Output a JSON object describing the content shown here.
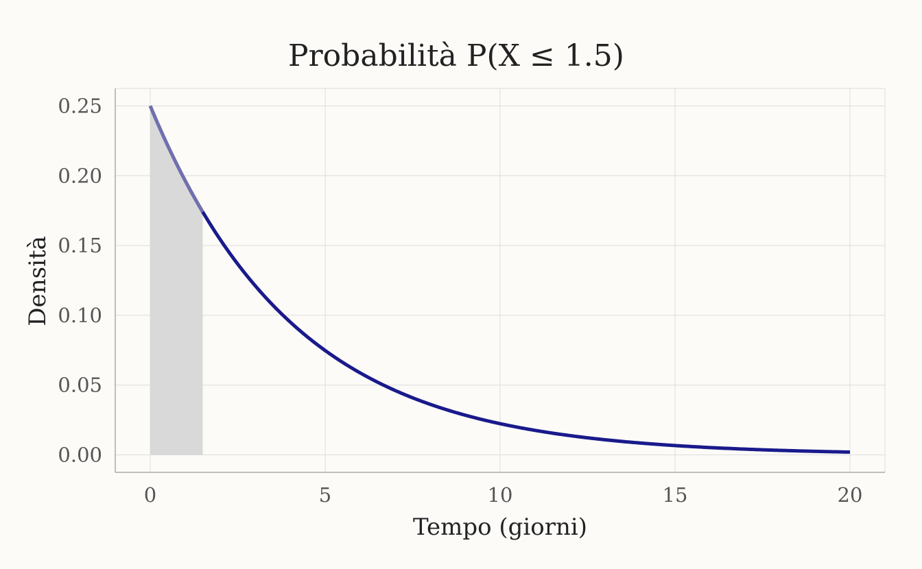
{
  "chart_data": {
    "type": "line",
    "title": "Probabilità P(X ≤ 1.5)",
    "xlabel": "Tempo (giorni)",
    "ylabel": "Densità",
    "xlim": [
      -1,
      21
    ],
    "ylim": [
      -0.0125,
      0.2625
    ],
    "x_ticks": [
      0,
      5,
      10,
      15,
      20
    ],
    "y_ticks": [
      0.0,
      0.05,
      0.1,
      0.15,
      0.2,
      0.25
    ],
    "x_tick_labels": [
      "0",
      "5",
      "10",
      "15",
      "20"
    ],
    "y_tick_labels": [
      "0.00",
      "0.05",
      "0.10",
      "0.15",
      "0.20",
      "0.25"
    ],
    "series": [
      {
        "x": [
          0,
          0.5,
          1,
          1.5,
          2,
          3,
          4,
          5,
          6,
          7,
          8,
          9,
          10,
          11,
          12,
          13,
          14,
          15,
          16,
          17,
          18,
          19,
          20
        ],
        "y": [
          0.25,
          0.221,
          0.195,
          0.172,
          0.152,
          0.118,
          0.092,
          0.072,
          0.056,
          0.043,
          0.034,
          0.026,
          0.021,
          0.016,
          0.012,
          0.01,
          0.008,
          0.006,
          0.005,
          0.004,
          0.003,
          0.002,
          0.002
        ]
      }
    ],
    "shaded_region": {
      "from": 0,
      "to": 1.5
    },
    "grid": true,
    "colors": {
      "background": "#fcfbf8",
      "line": "#1a1a8c",
      "shade": "#d9d9d9",
      "grid": "#dcdcdc",
      "axis": "#a9a9a9"
    }
  }
}
